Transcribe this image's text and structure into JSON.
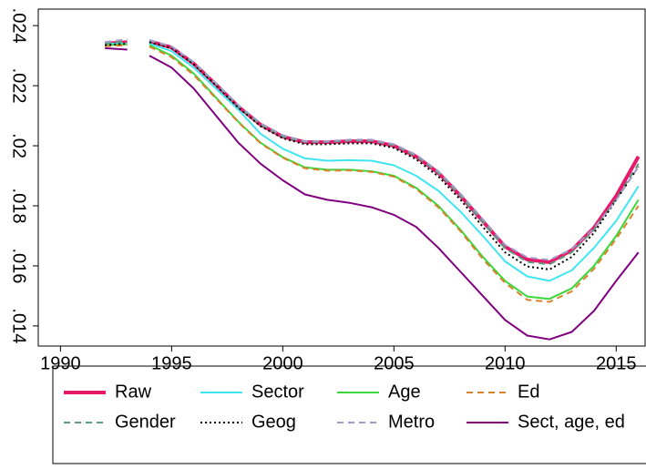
{
  "chart_data": {
    "type": "line",
    "x": [
      1992,
      1993,
      1993.5,
      1994,
      1995,
      1996,
      1997,
      1998,
      1999,
      2000,
      2001,
      2002,
      2003,
      2004,
      2005,
      2006,
      2007,
      2008,
      2009,
      2010,
      2011,
      2012,
      2013,
      2014,
      2015,
      2016
    ],
    "xlim": [
      1989,
      2016.3
    ],
    "xticks": [
      1990,
      1995,
      2000,
      2005,
      2010,
      2015
    ],
    "ylim": [
      0.01333,
      0.02455
    ],
    "yticks": [
      {
        "value": 0.014,
        "label": ".014"
      },
      {
        "value": 0.016,
        "label": ".016"
      },
      {
        "value": 0.018,
        "label": ".018"
      },
      {
        "value": 0.02,
        "label": ".02"
      },
      {
        "value": 0.022,
        "label": ".022"
      },
      {
        "value": 0.024,
        "label": ".024"
      }
    ],
    "series": [
      {
        "name": "Raw",
        "color": "#e8196b",
        "width": 4,
        "dash": "none",
        "values": [
          0.0234,
          0.02345,
          null,
          0.02348,
          0.02327,
          0.02273,
          0.02203,
          0.0213,
          0.0207,
          0.0203,
          0.02012,
          0.02012,
          0.02015,
          0.02015,
          0.02,
          0.01964,
          0.0191,
          0.01833,
          0.01748,
          0.01664,
          0.01621,
          0.01612,
          0.01652,
          0.01727,
          0.01833,
          0.01964
        ]
      },
      {
        "name": "Sector",
        "color": "#3fe6f2",
        "width": 2,
        "dash": "none",
        "values": [
          0.0234,
          0.0234,
          null,
          0.0234,
          0.02315,
          0.0226,
          0.0219,
          0.0212,
          0.0204,
          0.0199,
          0.01958,
          0.0195,
          0.01952,
          0.0195,
          0.01935,
          0.019,
          0.0185,
          0.0178,
          0.017,
          0.01615,
          0.01565,
          0.0155,
          0.01585,
          0.0166,
          0.0175,
          0.01865
        ]
      },
      {
        "name": "Age",
        "color": "#3ad83a",
        "width": 2,
        "dash": "none",
        "values": [
          0.02335,
          0.02338,
          null,
          0.02335,
          0.023,
          0.0224,
          0.0216,
          0.0208,
          0.0201,
          0.01962,
          0.01928,
          0.0192,
          0.0192,
          0.01915,
          0.019,
          0.0186,
          0.018,
          0.0172,
          0.0163,
          0.0155,
          0.01498,
          0.0149,
          0.01525,
          0.016,
          0.017,
          0.0182
        ]
      },
      {
        "name": "Ed",
        "color": "#d9822b",
        "width": 2,
        "dash": "7,5",
        "values": [
          0.02332,
          0.02335,
          null,
          0.0233,
          0.02295,
          0.02235,
          0.02157,
          0.02078,
          0.02008,
          0.0196,
          0.01925,
          0.01917,
          0.01918,
          0.01913,
          0.01897,
          0.01856,
          0.01795,
          0.01715,
          0.01623,
          0.01543,
          0.01487,
          0.0148,
          0.01515,
          0.0159,
          0.0169,
          0.018
        ]
      },
      {
        "name": "Gender",
        "color": "#5f9c7f",
        "width": 2,
        "dash": "7,5",
        "values": [
          0.0234,
          0.02348,
          null,
          0.0235,
          0.0233,
          0.02275,
          0.02205,
          0.0213,
          0.0207,
          0.0203,
          0.02013,
          0.02013,
          0.02017,
          0.02017,
          0.02002,
          0.01965,
          0.0191,
          0.01833,
          0.01745,
          0.01658,
          0.01613,
          0.01605,
          0.01645,
          0.0172,
          0.01822,
          0.0194
        ]
      },
      {
        "name": "Geog",
        "color": "#000000",
        "width": 2,
        "dash": "2,3",
        "values": [
          0.02335,
          0.0234,
          null,
          0.02345,
          0.02325,
          0.0227,
          0.022,
          0.02127,
          0.02065,
          0.02025,
          0.02005,
          0.02005,
          0.02008,
          0.02008,
          0.01993,
          0.01955,
          0.01898,
          0.0182,
          0.0173,
          0.01645,
          0.01598,
          0.01588,
          0.0163,
          0.0171,
          0.0182,
          0.0193
        ]
      },
      {
        "name": "Metro",
        "color": "#a09ac8",
        "width": 2,
        "dash": "7,5",
        "values": [
          0.02345,
          0.02355,
          null,
          0.02352,
          0.0233,
          0.02278,
          0.02208,
          0.02135,
          0.02075,
          0.02035,
          0.02015,
          0.02015,
          0.0202,
          0.0202,
          0.02005,
          0.0197,
          0.01915,
          0.0184,
          0.01755,
          0.0167,
          0.01628,
          0.0162,
          0.01655,
          0.01725,
          0.0182,
          0.0193
        ]
      },
      {
        "name": "Sect, age, ed",
        "color": "#800080",
        "width": 2,
        "dash": "none",
        "values": [
          0.02325,
          0.0232,
          null,
          0.023,
          0.0226,
          0.0219,
          0.021,
          0.0201,
          0.0194,
          0.01885,
          0.01838,
          0.0182,
          0.0181,
          0.01795,
          0.0177,
          0.0173,
          0.0166,
          0.0158,
          0.015,
          0.0142,
          0.01368,
          0.01355,
          0.0138,
          0.0145,
          0.0155,
          0.01645
        ]
      }
    ],
    "legend": "bottom",
    "grid": false
  }
}
